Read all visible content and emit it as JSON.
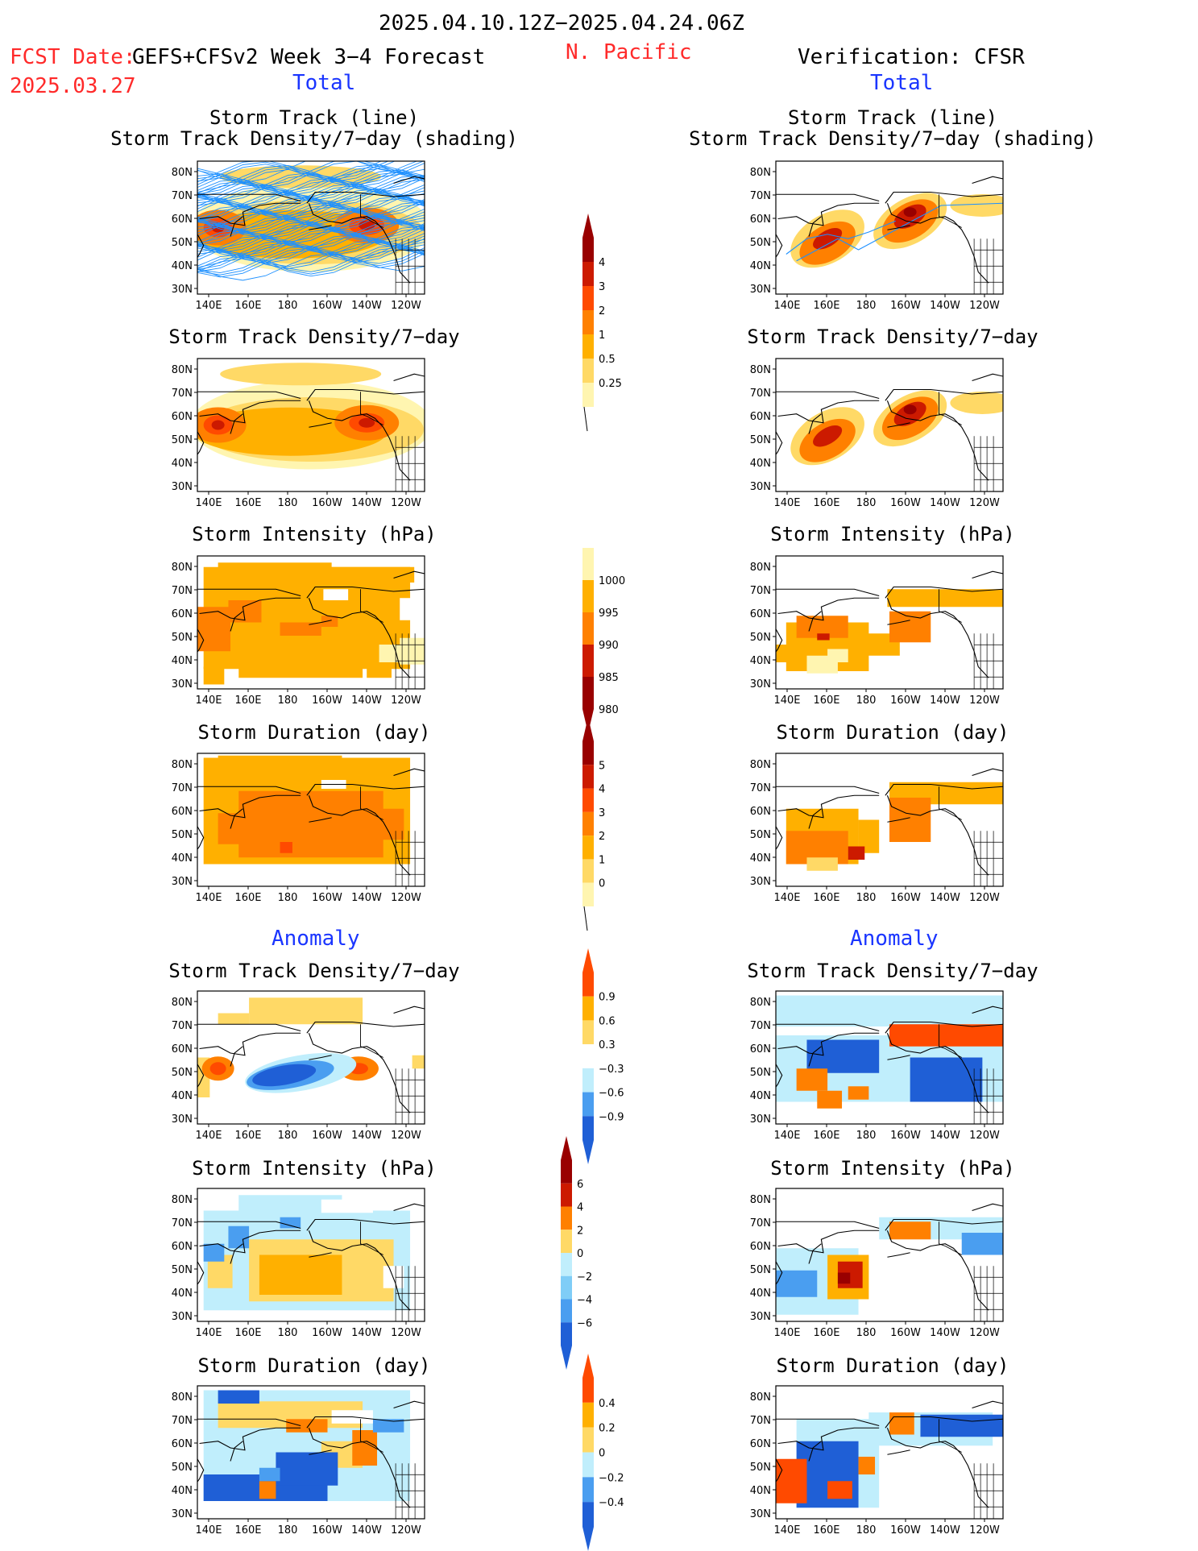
{
  "header": {
    "period": "2025.04.10.12Z−2025.04.24.06Z",
    "fcst_label": "FCST Date:",
    "model": "GEFS+CFSv2 Week 3−4 Forecast",
    "fcst_date": "2025.03.27",
    "region": "N. Pacific",
    "verification": "Verification: CFSR"
  },
  "sections": {
    "total": "Total",
    "anomaly": "Anomaly"
  },
  "panel_titles": {
    "track_line": "Storm Track (line)",
    "track_shading": "Storm Track Density/7−day (shading)",
    "density": "Storm Track Density/7−day",
    "intensity": "Storm Intensity (hPa)",
    "duration": "Storm Duration (day)"
  },
  "axes": {
    "lat_ticks": [
      "80N",
      "70N",
      "60N",
      "50N",
      "40N",
      "30N"
    ],
    "lon_ticks": [
      "140E",
      "160E",
      "180",
      "160W",
      "140W",
      "120W"
    ]
  },
  "colorbars": {
    "density_total": [
      "4",
      "3",
      "2",
      "1",
      "0.5",
      "0.25"
    ],
    "intensity_total": [
      "1000",
      "995",
      "990",
      "985",
      "980"
    ],
    "duration_total": [
      "5",
      "4",
      "3",
      "2",
      "1",
      "0"
    ],
    "density_anom": [
      "0.9",
      "0.6",
      "0.3",
      "−0.3",
      "−0.6",
      "−0.9"
    ],
    "intensity_anom": [
      "6",
      "4",
      "2",
      "0",
      "−2",
      "−4",
      "−6"
    ],
    "duration_anom": [
      "0.4",
      "0.2",
      "0",
      "−0.2",
      "−0.4"
    ]
  },
  "colors": {
    "warm": [
      "#fff5b0",
      "#ffd966",
      "#ffb000",
      "#ff8000",
      "#ff4a00",
      "#cc1a00",
      "#990000"
    ],
    "cold": [
      "#c0eefc",
      "#7fcdf7",
      "#4a9ef0",
      "#1f5fd6",
      "#1539c6"
    ],
    "track_line": "#1e90ff"
  }
}
